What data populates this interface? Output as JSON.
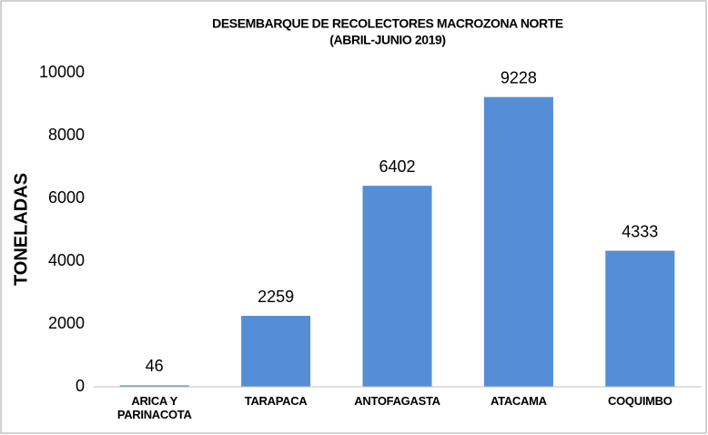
{
  "chart_data": {
    "type": "bar",
    "title": "DESEMBARQUE DE RECOLECTORES MACROZONA NORTE",
    "subtitle": "(ABRIL-JUNIO 2019)",
    "y_label": "TONELADAS",
    "categories": [
      "ARICA Y PARINACOTA",
      "TARAPACA",
      "ANTOFAGASTA",
      "ATACAMA",
      "COQUIMBO"
    ],
    "values": [
      46,
      2259,
      6402,
      9228,
      4333
    ],
    "color": "#558ed5",
    "ylim": [
      0,
      10000
    ],
    "yticks": [
      0,
      2000,
      4000,
      6000,
      8000,
      10000
    ],
    "grid": false
  }
}
